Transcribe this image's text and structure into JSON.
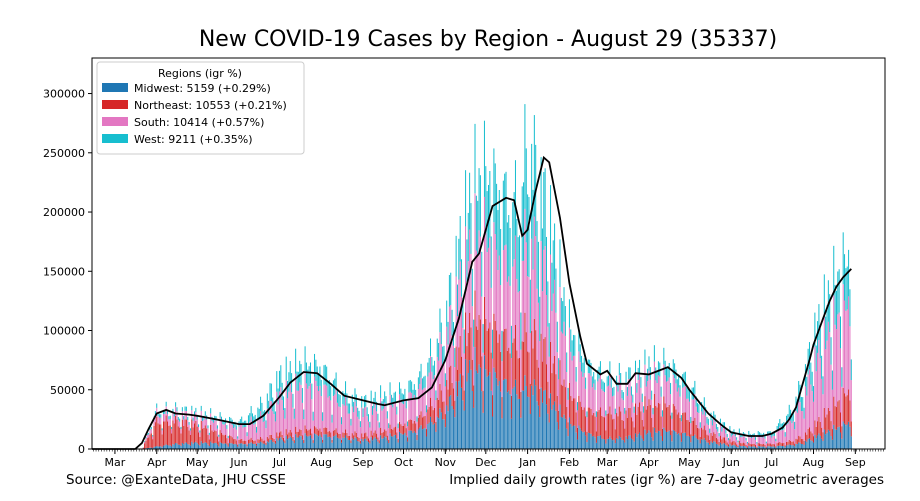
{
  "chart_data": {
    "type": "bar",
    "stacked": true,
    "title": "New COVID-19 Cases by Region - August 29 (35337)",
    "xlabel": "",
    "ylabel": "",
    "ylim": [
      0,
      330000
    ],
    "yticks": [
      0,
      50000,
      100000,
      150000,
      200000,
      250000,
      300000
    ],
    "ytick_labels": [
      "0",
      "50000",
      "100000",
      "150000",
      "200000",
      "250000",
      "300000"
    ],
    "x_ticks": [
      {
        "label": "Mar",
        "day": 0
      },
      {
        "label": "Apr",
        "day": 31
      },
      {
        "label": "May",
        "day": 61
      },
      {
        "label": "Jun",
        "day": 92
      },
      {
        "label": "Jul",
        "day": 122
      },
      {
        "label": "Aug",
        "day": 153
      },
      {
        "label": "Sep",
        "day": 184
      },
      {
        "label": "Oct",
        "day": 214
      },
      {
        "label": "Nov",
        "day": 245
      },
      {
        "label": "Dec",
        "day": 275
      },
      {
        "label": "Jan",
        "day": 306
      },
      {
        "label": "Feb",
        "day": 337
      },
      {
        "label": "Mar",
        "day": 365
      },
      {
        "label": "Apr",
        "day": 396
      },
      {
        "label": "May",
        "day": 426
      },
      {
        "label": "Jun",
        "day": 457
      },
      {
        "label": "Jul",
        "day": 487
      },
      {
        "label": "Aug",
        "day": 518
      },
      {
        "label": "Sep",
        "day": 549
      }
    ],
    "x_range_days": [
      -17,
      571
    ],
    "legend": {
      "title": "Regions (igr %)",
      "position": "top-left",
      "entries": [
        {
          "label": "Midwest: 5159 (+0.29%)",
          "color": "#1f77b4"
        },
        {
          "label": "Northeast: 10553 (+0.21%)",
          "color": "#d62728"
        },
        {
          "label": "South: 10414 (+0.57%)",
          "color": "#e377c2"
        },
        {
          "label": "West: 9211 (+0.35%)",
          "color": "#17becf"
        }
      ]
    },
    "series": [
      {
        "name": "Midwest",
        "color": "#1f77b4",
        "day": [
          0,
          20,
          31,
          45,
          61,
          92,
          110,
          122,
          140,
          153,
          170,
          184,
          200,
          214,
          225,
          235,
          245,
          255,
          265,
          275,
          290,
          300,
          306,
          312,
          320,
          330,
          337,
          350,
          365,
          380,
          396,
          410,
          426,
          440,
          457,
          470,
          487,
          500,
          510,
          518,
          530,
          540,
          546
        ],
        "value": [
          0,
          0,
          2000,
          4000,
          5000,
          4000,
          5000,
          8000,
          10000,
          11000,
          9000,
          7000,
          9000,
          12000,
          15000,
          22000,
          30000,
          50000,
          65000,
          60000,
          50000,
          45000,
          50000,
          46000,
          40000,
          28000,
          20000,
          12000,
          8000,
          9000,
          13000,
          14000,
          11000,
          6000,
          3000,
          2000,
          2000,
          3000,
          5000,
          9000,
          14000,
          18000,
          22000
        ]
      },
      {
        "name": "Northeast",
        "color": "#d62728",
        "day": [
          0,
          20,
          31,
          45,
          61,
          92,
          110,
          122,
          140,
          153,
          170,
          184,
          200,
          214,
          225,
          235,
          245,
          255,
          265,
          275,
          290,
          300,
          306,
          312,
          320,
          330,
          337,
          350,
          365,
          380,
          396,
          410,
          426,
          440,
          457,
          470,
          487,
          500,
          510,
          518,
          530,
          540,
          546
        ],
        "value": [
          0,
          0,
          20000,
          18000,
          14000,
          3000,
          3000,
          4000,
          5000,
          5000,
          4000,
          4000,
          5000,
          7000,
          9000,
          13000,
          18000,
          25000,
          35000,
          38000,
          36000,
          37000,
          43000,
          40000,
          36000,
          28000,
          22000,
          18000,
          20000,
          19000,
          22000,
          20000,
          13000,
          7000,
          3000,
          2000,
          2000,
          3000,
          5000,
          9000,
          16000,
          22000,
          26000
        ]
      },
      {
        "name": "South",
        "color": "#e377c2",
        "day": [
          0,
          20,
          31,
          45,
          61,
          92,
          110,
          122,
          140,
          153,
          170,
          184,
          200,
          214,
          225,
          235,
          245,
          255,
          265,
          275,
          290,
          300,
          306,
          312,
          320,
          330,
          337,
          350,
          365,
          380,
          396,
          410,
          426,
          440,
          457,
          470,
          487,
          500,
          510,
          518,
          530,
          540,
          546
        ],
        "value": [
          0,
          0,
          6000,
          6000,
          6000,
          10000,
          18000,
          30000,
          35000,
          33000,
          22000,
          18000,
          19000,
          18000,
          22000,
          28000,
          38000,
          50000,
          60000,
          65000,
          60000,
          60000,
          72000,
          68000,
          62000,
          46000,
          35000,
          25000,
          22000,
          20000,
          20000,
          21000,
          18000,
          10000,
          5000,
          5000,
          6000,
          15000,
          28000,
          48000,
          62000,
          68000,
          72000
        ]
      },
      {
        "name": "West",
        "color": "#17becf",
        "day": [
          0,
          20,
          31,
          45,
          61,
          92,
          110,
          122,
          140,
          153,
          170,
          184,
          200,
          214,
          225,
          235,
          245,
          255,
          265,
          275,
          290,
          300,
          306,
          312,
          320,
          330,
          337,
          350,
          365,
          380,
          396,
          410,
          426,
          440,
          457,
          470,
          487,
          500,
          510,
          518,
          530,
          540,
          546
        ],
        "value": [
          0,
          0,
          3000,
          3000,
          3000,
          4000,
          10000,
          15000,
          16000,
          15000,
          10000,
          8000,
          8000,
          8000,
          9000,
          12000,
          18000,
          30000,
          42000,
          50000,
          52000,
          50000,
          78000,
          66000,
          52000,
          30000,
          18000,
          10000,
          8000,
          8000,
          10000,
          11000,
          10000,
          6000,
          3000,
          2500,
          3000,
          8000,
          14000,
          22000,
          30000,
          34000,
          36000
        ]
      }
    ],
    "moving_average": {
      "name": "7-day average",
      "color": "#000000",
      "day": [
        -17,
        15,
        20,
        25,
        31,
        38,
        45,
        55,
        61,
        75,
        92,
        100,
        110,
        122,
        130,
        140,
        150,
        160,
        170,
        184,
        195,
        200,
        214,
        225,
        235,
        245,
        255,
        265,
        270,
        280,
        290,
        296,
        302,
        306,
        312,
        318,
        322,
        330,
        337,
        345,
        350,
        360,
        365,
        372,
        380,
        386,
        396,
        410,
        420,
        426,
        440,
        450,
        457,
        470,
        480,
        487,
        495,
        500,
        505,
        510,
        515,
        518,
        525,
        530,
        535,
        540,
        546
      ],
      "value": [
        0,
        0,
        5000,
        17000,
        30000,
        33000,
        30000,
        29000,
        28000,
        25000,
        21000,
        21000,
        28000,
        44000,
        56000,
        65000,
        64000,
        55000,
        45000,
        41000,
        38000,
        37000,
        41000,
        43000,
        52000,
        75000,
        110000,
        158000,
        165000,
        205000,
        212000,
        210000,
        180000,
        185000,
        218000,
        246000,
        242000,
        195000,
        140000,
        95000,
        72000,
        63000,
        66000,
        55000,
        55000,
        64000,
        63000,
        69000,
        60000,
        50000,
        30000,
        20000,
        14000,
        11000,
        11000,
        13000,
        18000,
        25000,
        35000,
        55000,
        75000,
        88000,
        110000,
        125000,
        137000,
        145000,
        152000
      ]
    },
    "annotations": {
      "source": "Source: @ExanteData, JHU CSSE",
      "note": "Implied daily growth rates (igr %) are 7-day geometric averages"
    }
  }
}
